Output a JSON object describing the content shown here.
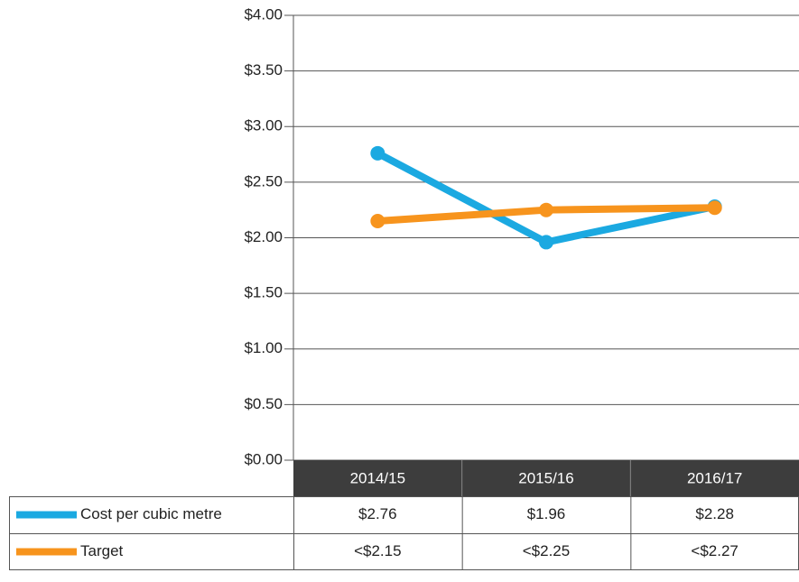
{
  "chart_data": {
    "type": "line",
    "categories": [
      "2014/15",
      "2015/16",
      "2016/17"
    ],
    "series": [
      {
        "name": "Cost per cubic metre",
        "color": "#1ba9e1",
        "values": [
          2.76,
          1.96,
          2.28
        ],
        "value_labels": [
          "$2.76",
          "$1.96",
          "$2.28"
        ]
      },
      {
        "name": "Target",
        "color": "#f7941d",
        "values": [
          2.15,
          2.25,
          2.27
        ],
        "value_labels": [
          "<$2.15",
          "<$2.25",
          "<$2.27"
        ]
      }
    ],
    "ylim": [
      0,
      4
    ],
    "yticks": [
      {
        "value": 0,
        "label": "$0.00"
      },
      {
        "value": 0.5,
        "label": "$0.50"
      },
      {
        "value": 1,
        "label": "$1.00"
      },
      {
        "value": 1.5,
        "label": "$1.50"
      },
      {
        "value": 2,
        "label": "$2.00"
      },
      {
        "value": 2.5,
        "label": "$2.50"
      },
      {
        "value": 3,
        "label": "$3.00"
      },
      {
        "value": 3.5,
        "label": "$3.50"
      },
      {
        "value": 4,
        "label": "$4.00"
      }
    ],
    "grid": true
  }
}
